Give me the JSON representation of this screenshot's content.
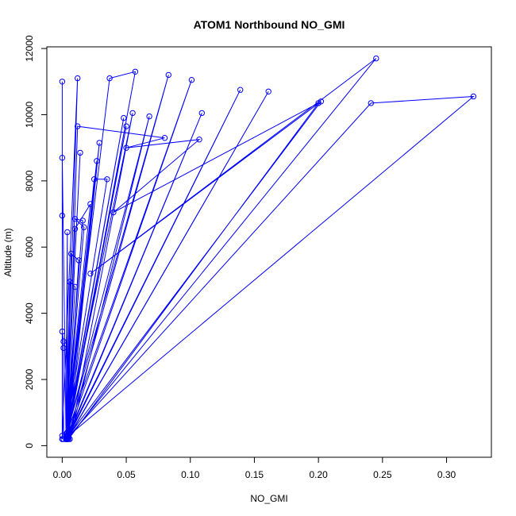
{
  "chart_data": {
    "type": "line",
    "title": "ATOM1 Northbound NO_GMI",
    "xlabel": "NO_GMI",
    "ylabel": "Altitude (m)",
    "xlim": [
      -0.012,
      0.335
    ],
    "ylim": [
      -350,
      12050
    ],
    "x_ticks": [
      0.0,
      0.05,
      0.1,
      0.15,
      0.2,
      0.25,
      0.3
    ],
    "x_tick_labels": [
      "0.00",
      "0.05",
      "0.10",
      "0.15",
      "0.20",
      "0.25",
      "0.30"
    ],
    "y_ticks": [
      0,
      2000,
      4000,
      6000,
      8000,
      10000,
      12000
    ],
    "y_tick_labels": [
      "0",
      "2000",
      "4000",
      "6000",
      "8000",
      "10000",
      "12000"
    ],
    "colors": {
      "series": "#0000ff"
    },
    "points": [
      {
        "x": 0.0,
        "y": 11000
      },
      {
        "x": 0.0,
        "y": 200
      },
      {
        "x": 0.012,
        "y": 11100
      },
      {
        "x": 0.003,
        "y": 200
      },
      {
        "x": 0.037,
        "y": 11100
      },
      {
        "x": 0.057,
        "y": 11300
      },
      {
        "x": 0.004,
        "y": 200
      },
      {
        "x": 0.083,
        "y": 11200
      },
      {
        "x": 0.003,
        "y": 300
      },
      {
        "x": 0.101,
        "y": 11050
      },
      {
        "x": 0.004,
        "y": 250
      },
      {
        "x": 0.139,
        "y": 10750
      },
      {
        "x": 0.004,
        "y": 200
      },
      {
        "x": 0.161,
        "y": 10700
      },
      {
        "x": 0.005,
        "y": 250
      },
      {
        "x": 0.245,
        "y": 11700
      },
      {
        "x": 0.022,
        "y": 5200
      },
      {
        "x": 0.202,
        "y": 10400
      },
      {
        "x": 0.005,
        "y": 300
      },
      {
        "x": 0.321,
        "y": 10550
      },
      {
        "x": 0.241,
        "y": 10350
      },
      {
        "x": 0.003,
        "y": 200
      },
      {
        "x": 0.048,
        "y": 9900
      },
      {
        "x": 0.003,
        "y": 300
      },
      {
        "x": 0.055,
        "y": 10050
      },
      {
        "x": 0.006,
        "y": 200
      },
      {
        "x": 0.068,
        "y": 9950
      },
      {
        "x": 0.004,
        "y": 400
      },
      {
        "x": 0.05,
        "y": 9650
      },
      {
        "x": 0.004,
        "y": 250
      },
      {
        "x": 0.109,
        "y": 10050
      },
      {
        "x": 0.004,
        "y": 200
      },
      {
        "x": 0.012,
        "y": 9650
      },
      {
        "x": 0.08,
        "y": 9300
      },
      {
        "x": 0.05,
        "y": 9000
      },
      {
        "x": 0.107,
        "y": 9250
      },
      {
        "x": 0.04,
        "y": 7050
      },
      {
        "x": 0.2,
        "y": 10350
      },
      {
        "x": 0.005,
        "y": 200
      },
      {
        "x": 0.029,
        "y": 9150
      },
      {
        "x": 0.003,
        "y": 300
      },
      {
        "x": 0.014,
        "y": 8850
      },
      {
        "x": 0.003,
        "y": 250
      },
      {
        "x": 0.027,
        "y": 8600
      },
      {
        "x": 0.004,
        "y": 200
      },
      {
        "x": 0.025,
        "y": 8050
      },
      {
        "x": 0.035,
        "y": 8050
      },
      {
        "x": 0.003,
        "y": 350
      },
      {
        "x": 0.022,
        "y": 7300
      },
      {
        "x": 0.01,
        "y": 6550
      },
      {
        "x": 0.003,
        "y": 250
      },
      {
        "x": 0.016,
        "y": 6800
      },
      {
        "x": 0.01,
        "y": 6850
      },
      {
        "x": 0.017,
        "y": 6600
      },
      {
        "x": 0.003,
        "y": 200
      },
      {
        "x": 0.004,
        "y": 6450
      },
      {
        "x": 0.004,
        "y": 250
      },
      {
        "x": 0.007,
        "y": 5800
      },
      {
        "x": 0.013,
        "y": 5600
      },
      {
        "x": 0.004,
        "y": 300
      },
      {
        "x": 0.01,
        "y": 4800
      },
      {
        "x": 0.006,
        "y": 4950
      },
      {
        "x": 0.003,
        "y": 200
      },
      {
        "x": 0.0,
        "y": 8700
      },
      {
        "x": 0.0,
        "y": 200
      },
      {
        "x": 0.0,
        "y": 6950
      },
      {
        "x": 0.0,
        "y": 300
      },
      {
        "x": 0.0,
        "y": 3450
      },
      {
        "x": 0.001,
        "y": 3150
      },
      {
        "x": 0.001,
        "y": 2950
      },
      {
        "x": 0.001,
        "y": 200
      }
    ]
  }
}
